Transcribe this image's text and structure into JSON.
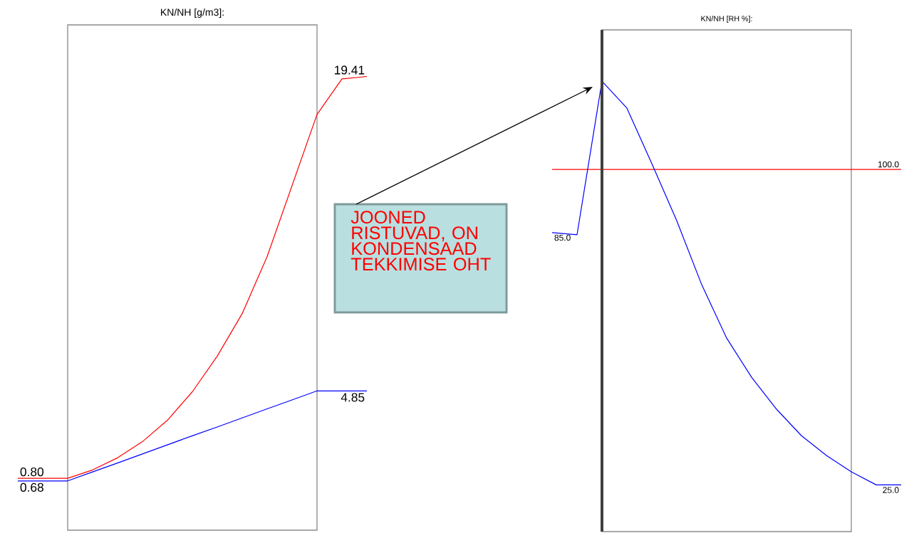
{
  "chart_data": [
    {
      "type": "line",
      "title": "KN/NH [g/m3]:",
      "categories": [
        null,
        null,
        null,
        null,
        null,
        null,
        null,
        null,
        null,
        null,
        null,
        null,
        null,
        null,
        null
      ],
      "ylim": [
        -1.6,
        21.8
      ],
      "tick_labels": false,
      "series": [
        {
          "color": "#ff0000",
          "values": [
            0.8,
            0.8,
            0.8,
            1.19,
            1.75,
            2.5,
            3.49,
            4.81,
            6.46,
            8.43,
            11.07,
            14.36,
            17.65,
            19.3,
            19.41
          ],
          "value_labels": [
            "0.80",
            null,
            null,
            null,
            null,
            null,
            null,
            null,
            null,
            null,
            null,
            null,
            null,
            null,
            "19.41"
          ]
        },
        {
          "color": "#0000ff",
          "values": [
            0.68,
            0.68,
            0.68,
            1.1,
            1.51,
            1.93,
            2.35,
            2.77,
            3.18,
            3.6,
            4.02,
            4.43,
            4.85,
            4.85,
            4.85
          ],
          "value_labels": [
            "0.68",
            null,
            null,
            null,
            null,
            null,
            null,
            null,
            null,
            null,
            null,
            null,
            null,
            null,
            "4.85"
          ]
        }
      ]
    },
    {
      "type": "line",
      "title": "KN/NH [RH %]:",
      "categories": [
        null,
        null,
        null,
        null,
        null,
        null,
        null,
        null,
        null,
        null,
        null,
        null,
        null,
        null,
        null
      ],
      "ylim": [
        13.9,
        133.2
      ],
      "tick_labels": false,
      "annotations": [
        "JOONED RISTUVAD, ON KONDENSAAD TEKKIMISE OHT"
      ],
      "series": [
        {
          "color": "#ff0000",
          "values": [
            100.0,
            100.0,
            100.0,
            100.0,
            100.0,
            100.0,
            100.0,
            100.0,
            100.0,
            100.0,
            100.0,
            100.0,
            100.0,
            100.0,
            100.0
          ],
          "value_labels": [
            null,
            null,
            null,
            null,
            null,
            null,
            null,
            null,
            null,
            null,
            null,
            null,
            null,
            null,
            "100.0"
          ]
        },
        {
          "color": "#0000ff",
          "values": [
            85.0,
            84.5,
            121,
            114.6,
            101.4,
            87.8,
            72.6,
            59.9,
            50.6,
            43.0,
            36.7,
            32.0,
            28.1,
            25.0,
            25.0
          ],
          "value_labels": [
            "85.0",
            null,
            null,
            null,
            null,
            null,
            null,
            null,
            null,
            null,
            null,
            null,
            null,
            null,
            "25.0"
          ]
        }
      ]
    }
  ]
}
